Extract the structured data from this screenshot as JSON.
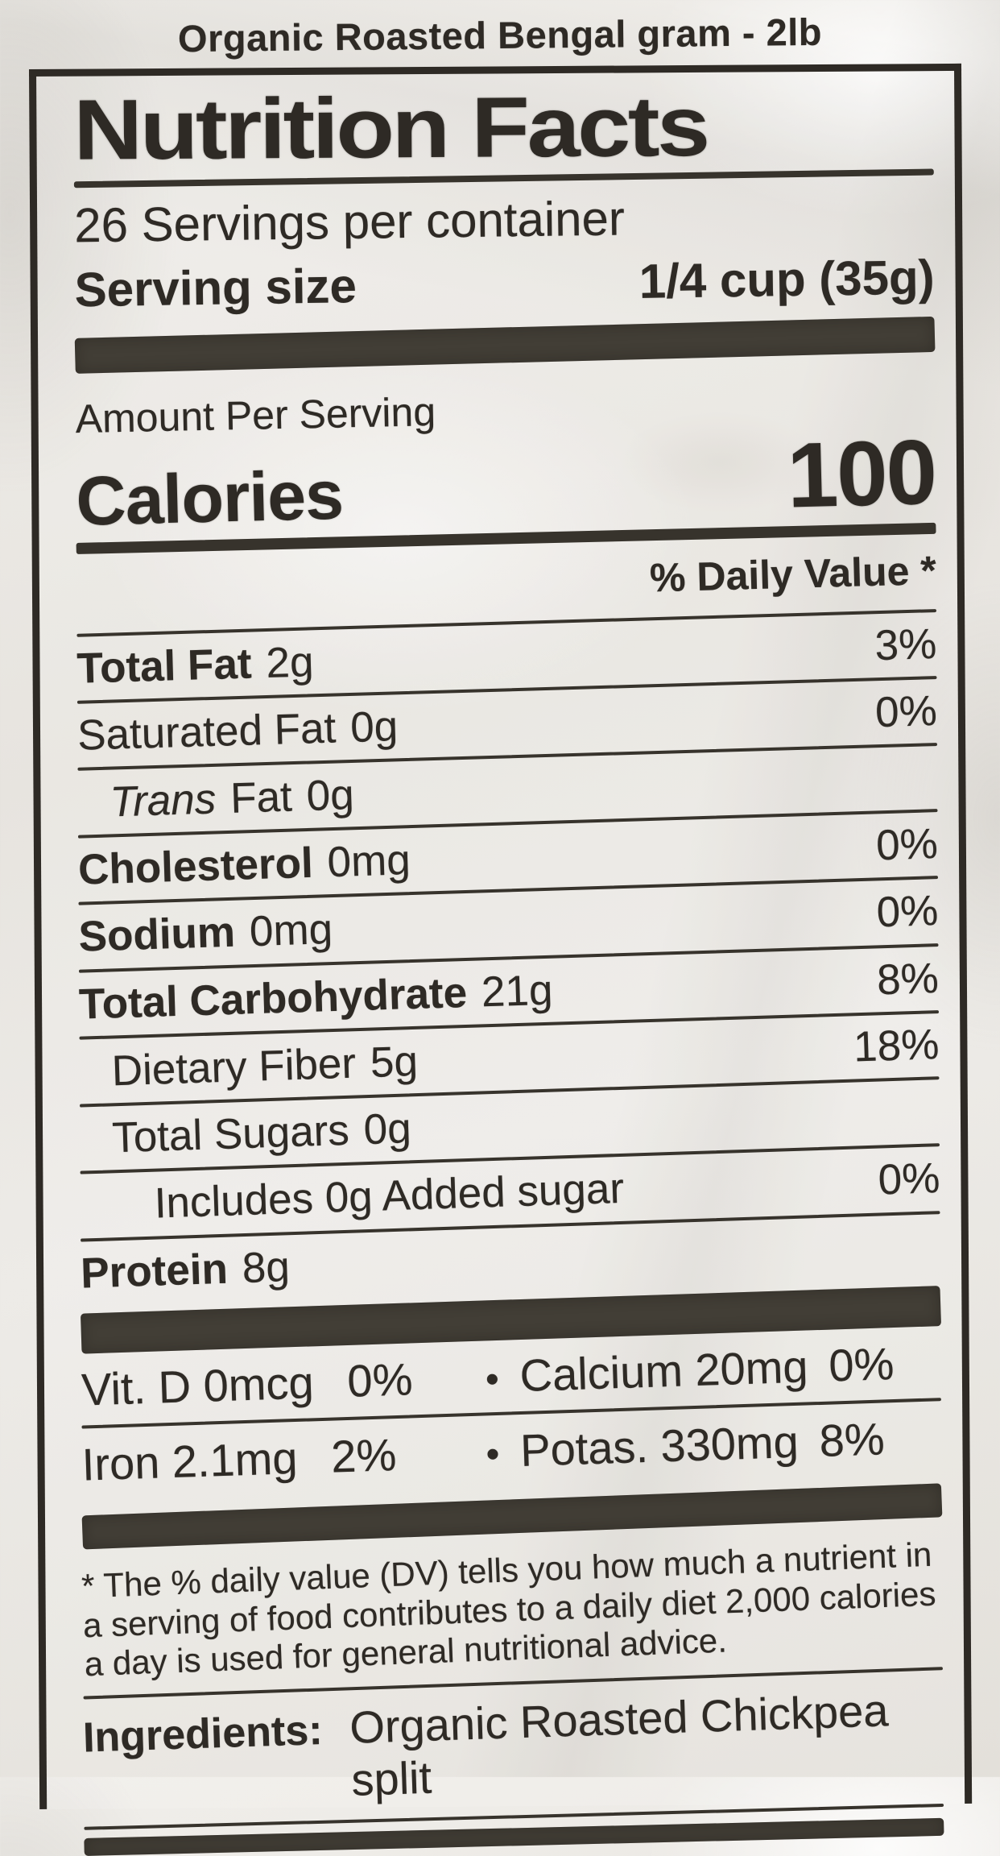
{
  "colors": {
    "ink": "#2e2a25",
    "rule": "#37332c",
    "bar": "#423e36",
    "paper": "#eae8e3"
  },
  "package": {
    "title": "Organic Roasted Bengal gram - 2lb"
  },
  "label": {
    "title": "Nutrition Facts",
    "servings_per_container": "26 Servings per container",
    "serving_size": {
      "label": "Serving size",
      "value": "1/4 cup (35g)"
    },
    "amount_per_serving": "Amount Per Serving",
    "calories": {
      "label": "Calories",
      "value": "100"
    },
    "daily_value_header": "% Daily Value *",
    "nutrients": [
      {
        "label_italic": "",
        "label": "Total Fat",
        "amount": "2g",
        "dv": "3%"
      },
      {
        "label_italic": "",
        "label": "Saturated Fat",
        "amount": "0g",
        "dv": "0%"
      },
      {
        "label_italic": "Trans",
        "label": "Fat",
        "amount": "0g",
        "dv": ""
      },
      {
        "label_italic": "",
        "label": "Cholesterol",
        "amount": "0mg",
        "dv": "0%"
      },
      {
        "label_italic": "",
        "label": "Sodium",
        "amount": "0mg",
        "dv": "0%"
      },
      {
        "label_italic": "",
        "label": "Total Carbohydrate",
        "amount": "21g",
        "dv": "8%"
      },
      {
        "label_italic": "",
        "label": "Dietary Fiber",
        "amount": "5g",
        "dv": "18%"
      },
      {
        "label_italic": "",
        "label": "Total Sugars",
        "amount": "0g",
        "dv": ""
      },
      {
        "label_italic": "",
        "label": "Includes 0g Added sugar",
        "amount": "",
        "dv": "0%"
      },
      {
        "label_italic": "",
        "label": "Protein",
        "amount": "8g",
        "dv": ""
      }
    ],
    "micros": [
      {
        "left_text": "Vit. D 0mcg",
        "left_dv": "0%",
        "bullet": "•",
        "right_text": "Calcium 20mg",
        "right_dv": "0%"
      },
      {
        "left_text": "Iron 2.1mg",
        "left_dv": "2%",
        "bullet": "•",
        "right_text": "Potas. 330mg",
        "right_dv": "8%"
      }
    ],
    "footnote": "* The % daily value (DV) tells you how much a nutrient in a serving of food contributes to a daily diet 2,000 calories a day is used for general nutritional advice.",
    "ingredients": {
      "label": "Ingredients:",
      "value": "Organic Roasted Chickpea split"
    }
  }
}
